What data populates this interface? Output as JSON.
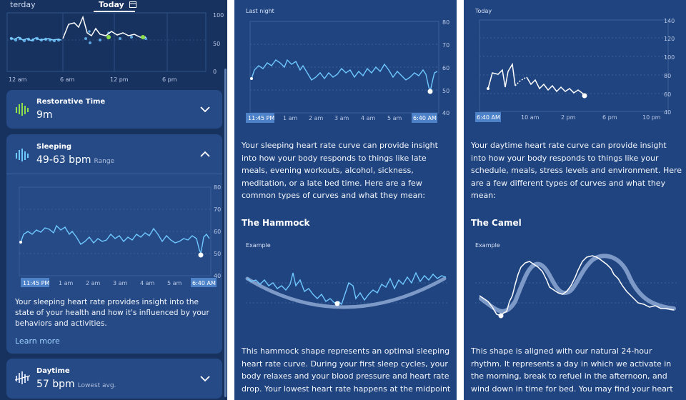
{
  "panel1": {
    "tabs": [
      "terday",
      "Today"
    ],
    "overview_chart": {
      "y_ticks": [
        "100",
        "50",
        "0"
      ],
      "x_ticks": [
        "12 am",
        "6 am",
        "12 pm",
        "6 pm"
      ]
    },
    "restorative": {
      "title": "Restorative Time",
      "value": "9m"
    },
    "sleeping": {
      "title": "Sleeping",
      "value": "49-63 bpm",
      "sub": "Range"
    },
    "sleep_chart": {
      "y_ticks": [
        "80",
        "70",
        "60",
        "50",
        "40"
      ],
      "start_time": "11:45 PM",
      "end_time": "6:40 AM",
      "x_ticks": [
        "1 am",
        "2 am",
        "3 am",
        "4 am",
        "5 am"
      ]
    },
    "description": "Your sleeping heart rate provides insight into the state of your health and how it's influenced by your behaviors and activities.",
    "learn_more": "Learn more",
    "daytime": {
      "title": "Daytime",
      "value": "57 bpm",
      "sub": "Lowest avg."
    }
  },
  "panel2": {
    "label": "Last night",
    "chart": {
      "y_ticks": [
        "80",
        "70",
        "60",
        "50",
        "40"
      ],
      "start_time": "11:45 PM",
      "end_time": "6:40 AM",
      "x_ticks": [
        "1 am",
        "2 am",
        "3 am",
        "4 am",
        "5 am"
      ]
    },
    "intro": "Your sleeping heart rate curve can provide insight into how your body responds to things like late meals, evening workouts, alcohol, sickness, meditation, or a late bed time. Here are a few common types of curves and what they mean:",
    "heading": "The Hammock",
    "example": "Example",
    "description": "This hammock shape represents an optimal sleeping heart rate curve. During your first sleep cycles, your body relaxes and your blood pressure and heart rate drop. Your lowest heart rate happens at the midpoint"
  },
  "panel3": {
    "label": "Today",
    "chart": {
      "y_ticks": [
        "140",
        "120",
        "100",
        "80",
        "60",
        "40"
      ],
      "start_time": "6:40 AM",
      "x_ticks": [
        "10 am",
        "2 pm",
        "6 pm",
        "10 pm"
      ]
    },
    "intro": "Your daytime heart rate curve can provide insight into how your body responds to things like your schedule, meals, stress levels and environment. Here are a few different types of curves and what they mean:",
    "heading": "The Camel",
    "example": "Example",
    "description": "This shape is aligned with our natural 24-hour rhythm. It represents a day in which we activate in the morning, break to refuel in the afternoon, and wind down in time for bed. You may find your heart"
  },
  "colors": {
    "panel_bg": "#20447f",
    "line": "#6fc8ff",
    "accent_green": "#8ee04a"
  },
  "icons": [
    "calendar-icon",
    "restorative-bars-icon",
    "chevron-down-icon",
    "heart-rate-bars-icon",
    "chevron-up-icon",
    "daytime-bars-icon"
  ]
}
